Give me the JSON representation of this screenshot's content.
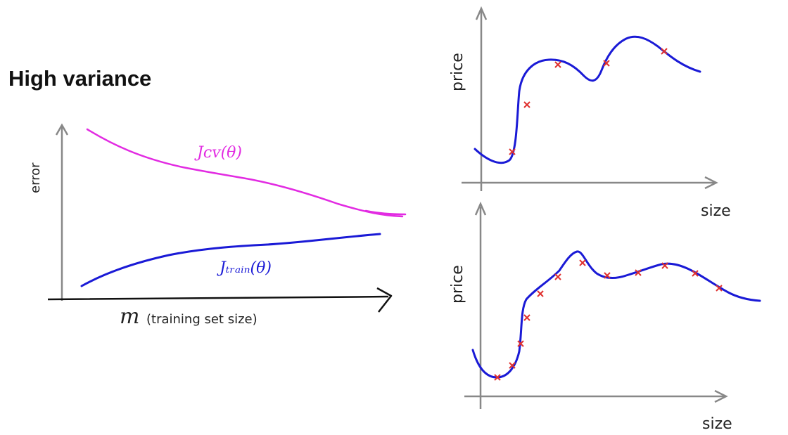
{
  "left_panel": {
    "title": "High variance",
    "y_axis_label": "error",
    "x_axis_symbol": "m",
    "x_axis_label": "(training set size)",
    "cv_curve_label": "Jᴄᴠ(θ)",
    "train_curve_label": "Jₜᵣₐᵢₙ(θ)",
    "colors": {
      "cv": "#e22be2",
      "train": "#1a1ad6"
    }
  },
  "top_right_plot": {
    "y_axis_label": "price",
    "x_axis_label": "size"
  },
  "bottom_right_plot": {
    "y_axis_label": "price",
    "x_axis_label": "size"
  },
  "colors": {
    "curve": "#1a1ad6",
    "marker": "#e0312f",
    "axis": "#888888"
  }
}
